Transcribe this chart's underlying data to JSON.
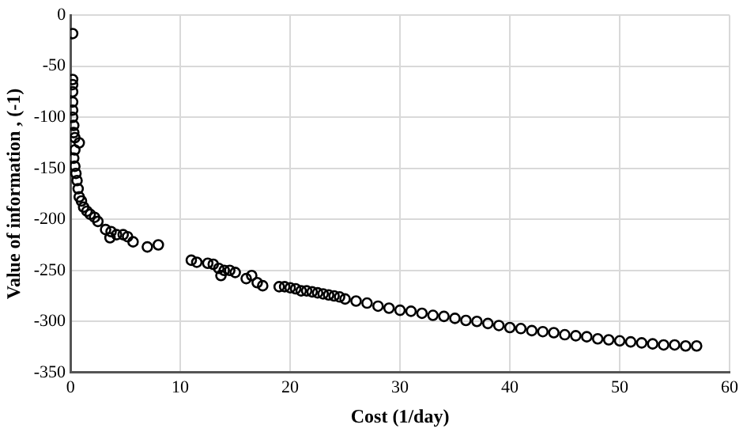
{
  "chart_data": {
    "type": "scatter",
    "xlabel": "Cost (1/day)",
    "ylabel": "Value of information , (-1)",
    "x": [
      0.2,
      0.2,
      0.2,
      0.2,
      0.2,
      0.2,
      0.2,
      0.3,
      0.3,
      0.4,
      0.8,
      0.4,
      0.3,
      0.4,
      0.5,
      0.6,
      0.7,
      0.8,
      1,
      1.2,
      1.5,
      1.8,
      2.2,
      2.5,
      3.2,
      3.7,
      3.6,
      4.2,
      4.8,
      5.2,
      5.7,
      7,
      8,
      11,
      11.5,
      12.5,
      13,
      13.5,
      13.7,
      14,
      14.5,
      15,
      16,
      16.5,
      17,
      17.5,
      19,
      19.5,
      20,
      20.5,
      21,
      21.5,
      22,
      22.5,
      23,
      23.5,
      24,
      24.5,
      25,
      26,
      27,
      28,
      29,
      30,
      31,
      32,
      33,
      34,
      35,
      36,
      37,
      38,
      39,
      40,
      41,
      42,
      43,
      44,
      45,
      46,
      47,
      48,
      49,
      50,
      51,
      52,
      53,
      54,
      55,
      56,
      57
    ],
    "series": [
      {
        "color": "#000000",
        "values": [
          -18,
          -63,
          -68,
          -75,
          -85,
          -93,
          -100,
          -108,
          -115,
          -120,
          -125,
          -132,
          -140,
          -148,
          -155,
          -162,
          -170,
          -178,
          -182,
          -188,
          -192,
          -195,
          -198,
          -202,
          -210,
          -212,
          -218,
          -215,
          -215,
          -217,
          -222,
          -227,
          -225,
          -240,
          -242,
          -243,
          -244,
          -248,
          -255,
          -250,
          -250,
          -252,
          -258,
          -255,
          -262,
          -265,
          -266,
          -266,
          -267,
          -268,
          -270,
          -270,
          -271,
          -272,
          -273,
          -274,
          -275,
          -276,
          -278,
          -280,
          -282,
          -285,
          -287,
          -289,
          -290,
          -292,
          -294,
          -295,
          -297,
          -299,
          -300,
          -302,
          -304,
          -306,
          -307,
          -309,
          -310,
          -311,
          -313,
          -314,
          -315,
          -317,
          -318,
          -319,
          -320,
          -321,
          -322,
          -323,
          -323,
          -324,
          -324
        ]
      }
    ],
    "xlim": [
      0,
      60
    ],
    "xticks": [
      0,
      10,
      20,
      30,
      40,
      50,
      60
    ],
    "ylim": [
      -350,
      0
    ],
    "yticks": [
      -350,
      -300,
      -250,
      -200,
      -150,
      -100,
      -50,
      0
    ],
    "grid": true,
    "legend": false,
    "marker": "circle"
  }
}
